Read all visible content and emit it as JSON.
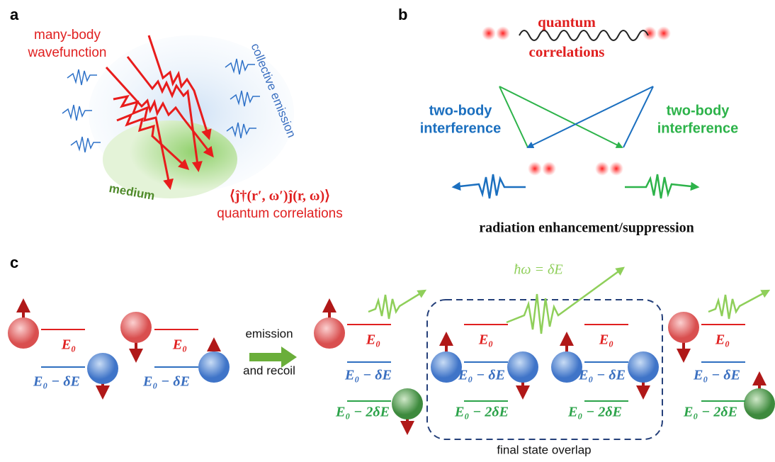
{
  "panel_a": {
    "label": "a",
    "wavefunction": [
      "many-body",
      "wavefunction"
    ],
    "emission": "collective emission",
    "medium": "medium",
    "formula": "⟨ĵ†(r′, ω′)ĵ(r, ω)⟩",
    "correlations": "quantum correlations"
  },
  "panel_b": {
    "label": "b",
    "correlations": [
      "quantum",
      "correlations"
    ],
    "left": [
      "two-body",
      "interference"
    ],
    "right": [
      "two-body",
      "interference"
    ],
    "caption": "radiation enhancement/suppression"
  },
  "panel_c": {
    "label": "c",
    "initial": [
      {
        "upper": "E₀",
        "lower": "E₀ − δE"
      },
      {
        "upper": "E₀",
        "lower": "E₀ − δE"
      }
    ],
    "arrow": [
      "emission",
      "and recoil"
    ],
    "photon": "ħω = δE",
    "final": [
      {
        "upper": "E₀",
        "middle": "E₀ − δE",
        "lower": "E₀ − 2δE"
      },
      {
        "upper": "E₀",
        "middle": "E₀ − δE",
        "lower": "E₀ − 2δE"
      },
      {
        "upper": "E₀",
        "middle": "E₀ − δE",
        "lower": "E₀ − 2δE"
      },
      {
        "upper": "E₀",
        "middle": "E₀ − δE",
        "lower": "E₀ − 2δE"
      }
    ],
    "overlap": "final state overlap"
  }
}
